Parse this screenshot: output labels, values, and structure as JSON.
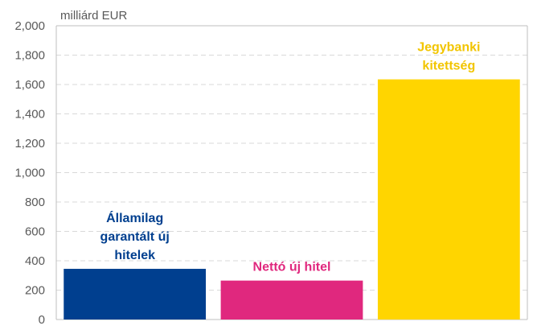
{
  "chart_data": {
    "type": "bar",
    "unit_label": "milliárd EUR",
    "categories": [
      "Államilag garantált új hitelek",
      "Nettó új hitel",
      "Jegybanki kitettség"
    ],
    "label_lines": [
      [
        "Államilag",
        "garantált új",
        "hitelek"
      ],
      [
        "Nettó új hitel"
      ],
      [
        "Jegybanki",
        "kitettség"
      ]
    ],
    "values": [
      345,
      265,
      1635
    ],
    "colors": [
      "#003f8f",
      "#e0287e",
      "#ffd500"
    ],
    "ylim": [
      0,
      2000
    ],
    "yticks": [
      0,
      200,
      400,
      600,
      800,
      1000,
      1200,
      1400,
      1600,
      1800,
      2000
    ],
    "ytick_labels": [
      "0",
      "200",
      "400",
      "600",
      "800",
      "1,000",
      "1,200",
      "1,400",
      "1,600",
      "1,800",
      "2,000"
    ],
    "grid": true,
    "legend": false
  }
}
